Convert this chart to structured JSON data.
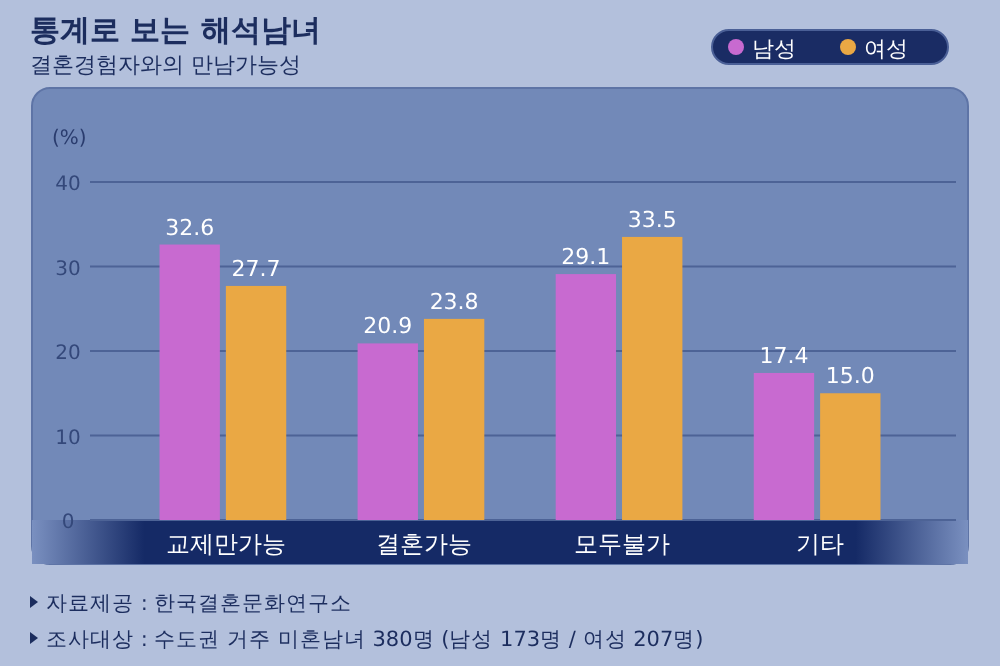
{
  "chart_data": {
    "type": "bar",
    "title": "통계로 보는 해석남녀",
    "subtitle": "결혼경험자와의 만남가능성",
    "ylabel": "(%)",
    "categories": [
      "교제만가능",
      "결혼가능",
      "모두불가",
      "기타"
    ],
    "series": [
      {
        "name": "남성",
        "color": "#c86ad0",
        "values": [
          32.6,
          20.9,
          29.1,
          17.4
        ],
        "value_labels": [
          "32.6",
          "20.9",
          "29.1",
          "17.4"
        ]
      },
      {
        "name": "여성",
        "color": "#eaa844",
        "values": [
          27.7,
          23.8,
          33.5,
          15.0
        ],
        "value_labels": [
          "27.7",
          "23.8",
          "33.5",
          "15.0"
        ]
      }
    ],
    "ylim": [
      0,
      40
    ],
    "yticks": [
      0,
      10,
      20,
      30,
      40
    ],
    "grid": "y",
    "legend": "top right",
    "annotations": [
      "자료제공 : 한국결혼문화연구소",
      "조사대상 : 수도권 거주 미혼남녀 380명 (남성 173명 / 여성 207명)"
    ]
  }
}
